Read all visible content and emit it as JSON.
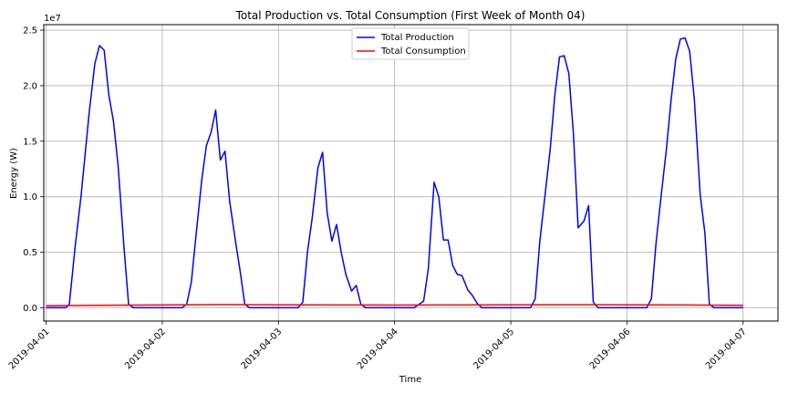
{
  "chart_data": {
    "type": "line",
    "title": "Total Production vs. Total Consumption (First Week of Month 04)",
    "xlabel": "Time",
    "ylabel": "Energy (W)",
    "y_offset_label": "1e7",
    "x_ticks": [
      "2019-04-01",
      "2019-04-02",
      "2019-04-03",
      "2019-04-04",
      "2019-04-05",
      "2019-04-06",
      "2019-04-07"
    ],
    "y_ticks": [
      "0.0",
      "0.5",
      "1.0",
      "1.5",
      "2.0",
      "2.5"
    ],
    "y_tick_values": [
      0,
      5000000,
      10000000,
      15000000,
      20000000,
      25000000
    ],
    "xlim": [
      -0.02,
      6.3
    ],
    "ylim": [
      -1200000,
      25500000
    ],
    "grid": true,
    "legend_position": "top-center",
    "series": [
      {
        "name": "Total Production",
        "color": "#0000ff",
        "points": [
          [
            0,
            0
          ],
          [
            0.17,
            0
          ],
          [
            0.2,
            300000
          ],
          [
            0.25,
            5500000
          ],
          [
            0.3,
            10000000
          ],
          [
            0.37,
            17500000
          ],
          [
            0.42,
            22000000
          ],
          [
            0.46,
            23600000
          ],
          [
            0.5,
            23200000
          ],
          [
            0.54,
            19200000
          ],
          [
            0.58,
            16800000
          ],
          [
            0.62,
            12800000
          ],
          [
            0.67,
            5500000
          ],
          [
            0.71,
            300000
          ],
          [
            0.75,
            0
          ],
          [
            0.83,
            0
          ],
          [
            1.0,
            0
          ],
          [
            1.17,
            0
          ],
          [
            1.21,
            300000
          ],
          [
            1.25,
            2300000
          ],
          [
            1.29,
            6500000
          ],
          [
            1.34,
            11500000
          ],
          [
            1.38,
            14600000
          ],
          [
            1.42,
            15800000
          ],
          [
            1.46,
            17800000
          ],
          [
            1.5,
            13300000
          ],
          [
            1.54,
            14100000
          ],
          [
            1.58,
            9600000
          ],
          [
            1.63,
            6000000
          ],
          [
            1.67,
            3300000
          ],
          [
            1.71,
            300000
          ],
          [
            1.75,
            0
          ],
          [
            1.83,
            0
          ],
          [
            2.0,
            0
          ],
          [
            2.17,
            0
          ],
          [
            2.21,
            500000
          ],
          [
            2.25,
            5000000
          ],
          [
            2.29,
            8000000
          ],
          [
            2.34,
            12600000
          ],
          [
            2.38,
            14000000
          ],
          [
            2.42,
            8500000
          ],
          [
            2.46,
            6000000
          ],
          [
            2.5,
            7500000
          ],
          [
            2.54,
            5000000
          ],
          [
            2.58,
            3000000
          ],
          [
            2.63,
            1500000
          ],
          [
            2.67,
            2000000
          ],
          [
            2.71,
            300000
          ],
          [
            2.75,
            0
          ],
          [
            2.83,
            0
          ],
          [
            3.0,
            0
          ],
          [
            3.17,
            0
          ],
          [
            3.21,
            300000
          ],
          [
            3.25,
            600000
          ],
          [
            3.29,
            3500000
          ],
          [
            3.34,
            11300000
          ],
          [
            3.38,
            10000000
          ],
          [
            3.42,
            6100000
          ],
          [
            3.46,
            6100000
          ],
          [
            3.5,
            3800000
          ],
          [
            3.54,
            3000000
          ],
          [
            3.58,
            2900000
          ],
          [
            3.63,
            1600000
          ],
          [
            3.67,
            1100000
          ],
          [
            3.71,
            400000
          ],
          [
            3.75,
            0
          ],
          [
            3.83,
            0
          ],
          [
            4.0,
            0
          ],
          [
            4.17,
            0
          ],
          [
            4.21,
            800000
          ],
          [
            4.25,
            6000000
          ],
          [
            4.29,
            9700000
          ],
          [
            4.34,
            14300000
          ],
          [
            4.38,
            19200000
          ],
          [
            4.42,
            22600000
          ],
          [
            4.46,
            22700000
          ],
          [
            4.5,
            21100000
          ],
          [
            4.54,
            15600000
          ],
          [
            4.58,
            7200000
          ],
          [
            4.63,
            7800000
          ],
          [
            4.67,
            9200000
          ],
          [
            4.71,
            500000
          ],
          [
            4.75,
            0
          ],
          [
            4.83,
            0
          ],
          [
            5.0,
            0
          ],
          [
            5.17,
            0
          ],
          [
            5.21,
            800000
          ],
          [
            5.25,
            5800000
          ],
          [
            5.29,
            9700000
          ],
          [
            5.34,
            14300000
          ],
          [
            5.38,
            18700000
          ],
          [
            5.42,
            22400000
          ],
          [
            5.46,
            24200000
          ],
          [
            5.5,
            24300000
          ],
          [
            5.54,
            23100000
          ],
          [
            5.58,
            18800000
          ],
          [
            5.63,
            10200000
          ],
          [
            5.67,
            6800000
          ],
          [
            5.71,
            300000
          ],
          [
            5.75,
            0
          ],
          [
            5.83,
            0
          ],
          [
            6.0,
            0
          ]
        ]
      },
      {
        "name": "Total Consumption",
        "color": "#ff0000",
        "points": [
          [
            0,
            180000
          ],
          [
            0.5,
            220000
          ],
          [
            1.0,
            250000
          ],
          [
            1.5,
            280000
          ],
          [
            2.0,
            260000
          ],
          [
            2.5,
            250000
          ],
          [
            3.0,
            240000
          ],
          [
            3.5,
            250000
          ],
          [
            4.0,
            260000
          ],
          [
            4.5,
            270000
          ],
          [
            5.0,
            260000
          ],
          [
            5.5,
            250000
          ],
          [
            6.0,
            220000
          ]
        ]
      }
    ]
  }
}
